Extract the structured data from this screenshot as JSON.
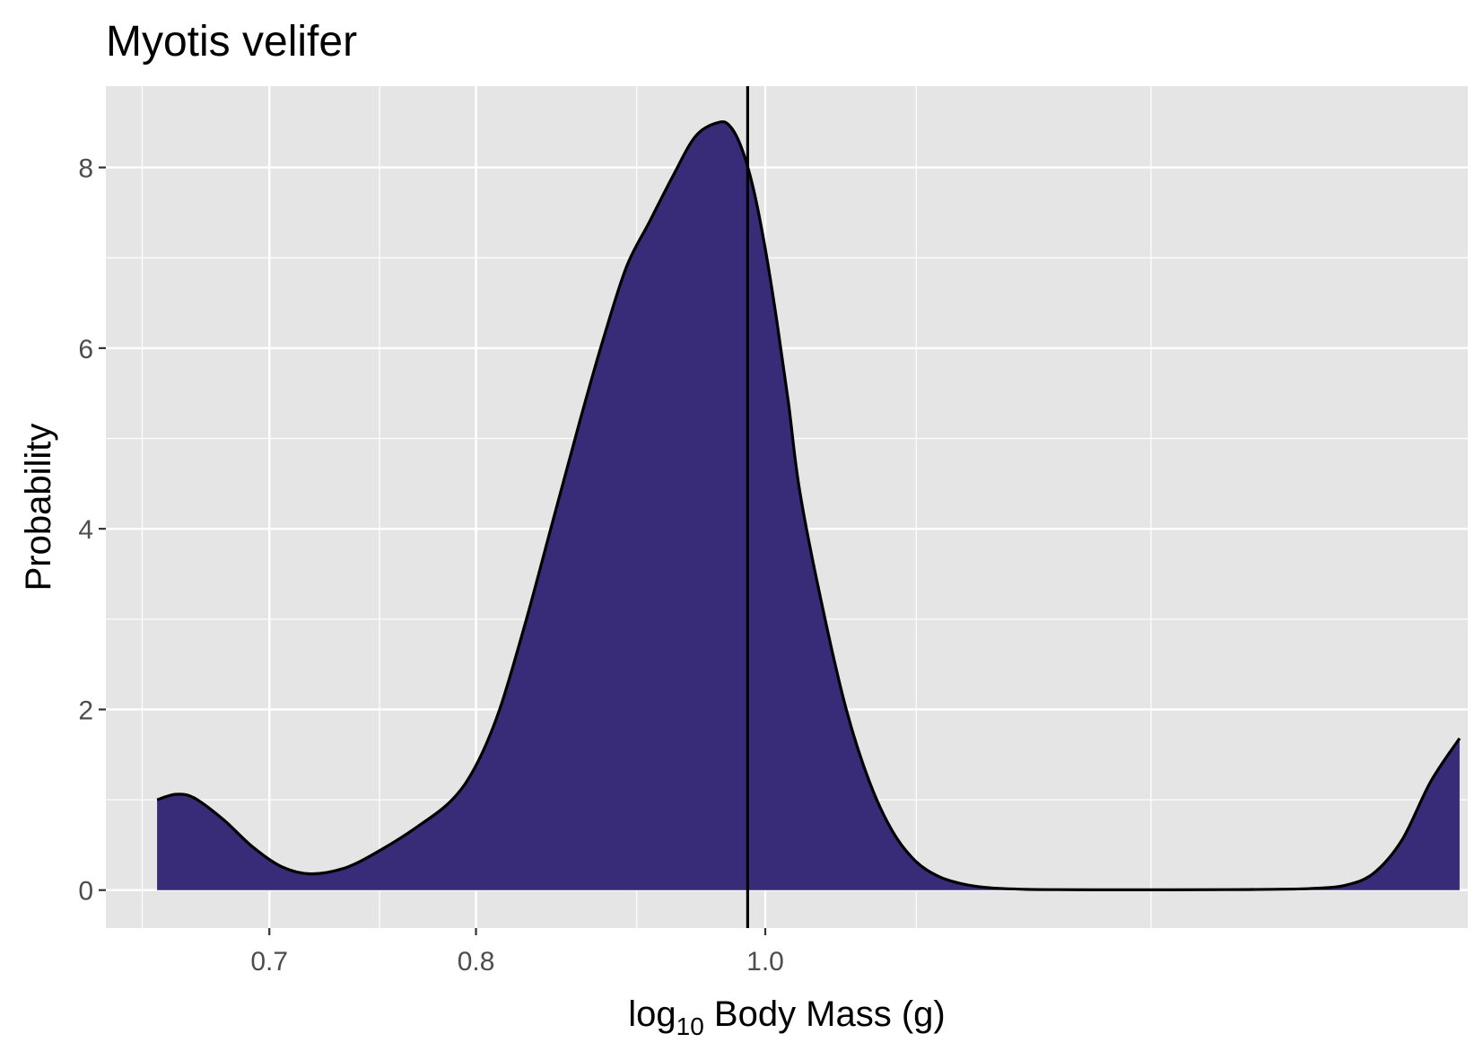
{
  "chart_data": {
    "type": "area",
    "title": "Myotis velifer",
    "xlabel": {
      "prefix": "log",
      "subscript": "10",
      "suffix": " Body Mass (g)"
    },
    "ylabel": "Probability",
    "x_axis_scale": "reciprocal",
    "x_ticks": [
      "0.7",
      "0.8",
      "1.0"
    ],
    "x_tick_values": [
      0.7,
      0.8,
      1.0
    ],
    "x_minor_grid": [
      0.65,
      0.75,
      0.9,
      1.15,
      1.5
    ],
    "y_ticks": [
      "0",
      "2",
      "4",
      "6",
      "8"
    ],
    "y_tick_values": [
      0,
      2,
      4,
      6,
      8
    ],
    "xlim": [
      0.637,
      2.545
    ],
    "ylim": [
      -0.42,
      8.9
    ],
    "grid": true,
    "colors": {
      "fill": "#382b77",
      "line": "#000000",
      "panel": "#e5e5e5",
      "grid": "#ffffff"
    },
    "vline": 0.985,
    "series": [
      {
        "x": [
          0.6555,
          0.6625,
          0.6696,
          0.6811,
          0.6929,
          0.7052,
          0.7179,
          0.7341,
          0.751,
          0.7687,
          0.787,
          0.8,
          0.8133,
          0.8289,
          0.8451,
          0.862,
          0.8772,
          0.8929,
          0.9091,
          0.9259,
          0.9434,
          0.9615,
          0.9709,
          0.9804,
          0.9901,
          1.0,
          1.0101,
          1.0204,
          1.0309,
          1.0526,
          1.0753,
          1.0989,
          1.1236,
          1.1494,
          1.1765,
          1.2048,
          1.2346,
          1.2821,
          1.3333,
          1.4286,
          1.5385,
          1.6667,
          1.8182,
          1.9048,
          2.0,
          2.1053,
          2.2222,
          2.3529,
          2.5
        ],
        "y": [
          1.0,
          1.06,
          1.02,
          0.78,
          0.48,
          0.26,
          0.18,
          0.25,
          0.45,
          0.7,
          1.0,
          1.38,
          2.0,
          3.0,
          4.1,
          5.2,
          6.1,
          6.9,
          7.4,
          7.9,
          8.35,
          8.5,
          8.45,
          8.2,
          7.75,
          7.1,
          6.3,
          5.4,
          4.4,
          3.1,
          2.0,
          1.2,
          0.65,
          0.32,
          0.15,
          0.07,
          0.03,
          0.01,
          0.005,
          0.003,
          0.003,
          0.005,
          0.01,
          0.02,
          0.05,
          0.18,
          0.55,
          1.2,
          1.68
        ]
      }
    ]
  }
}
